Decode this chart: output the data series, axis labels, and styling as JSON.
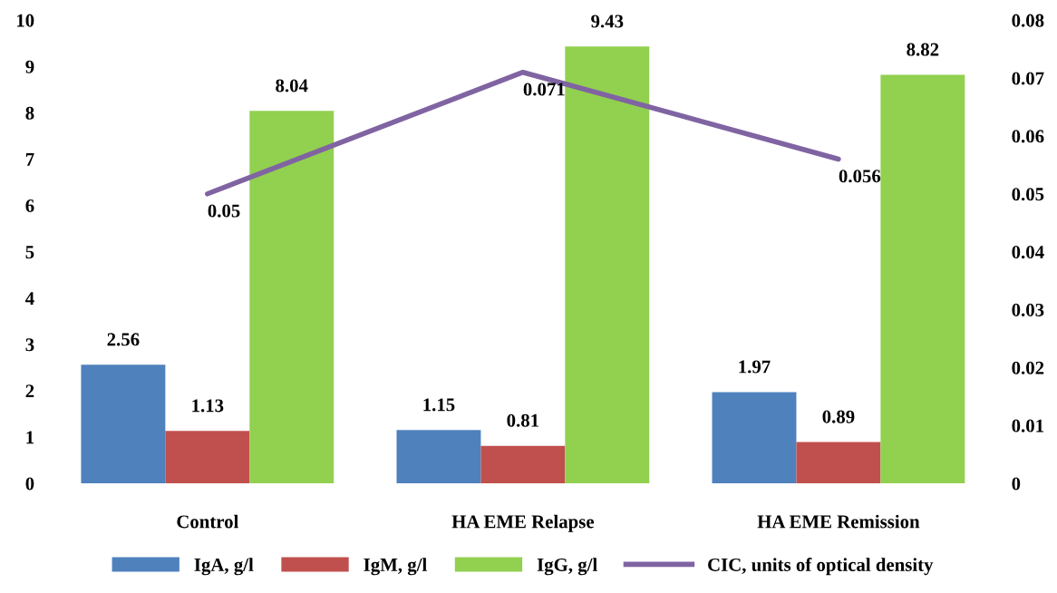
{
  "chart_data": {
    "type": "bar",
    "categories": [
      "Control",
      "HA EME Relapse",
      "HA EME Remission"
    ],
    "series": [
      {
        "name": "IgA, g/l",
        "color": "#4f81bd",
        "values": [
          2.56,
          1.15,
          1.97
        ]
      },
      {
        "name": "IgM, g/l",
        "color": "#c0504d",
        "values": [
          1.13,
          0.81,
          0.89
        ]
      },
      {
        "name": "IgG, g/l",
        "color": "#92d050",
        "values": [
          8.04,
          9.43,
          8.82
        ]
      },
      {
        "name": "CIC, units of optical density",
        "color": "#8064a2",
        "type": "line",
        "axis": "y2",
        "values": [
          0.05,
          0.071,
          0.056
        ]
      }
    ],
    "ylim": [
      0,
      10
    ],
    "yticks": [
      0,
      1,
      2,
      3,
      4,
      5,
      6,
      7,
      8,
      9,
      10
    ],
    "y2lim": [
      0,
      0.08
    ],
    "y2ticks": [
      0,
      0.01,
      0.02,
      0.03,
      0.04,
      0.05,
      0.06,
      0.07,
      0.08
    ],
    "data_labels": true,
    "grid": false,
    "legend": "bottom",
    "marker": "none",
    "line_style": "solid"
  }
}
